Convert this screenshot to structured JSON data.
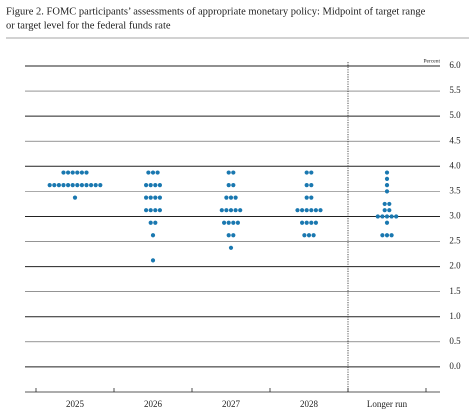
{
  "chart_data": {
    "type": "dot",
    "title": [
      "Figure 2. FOMC participants’ assessments of appropriate monetary policy: Midpoint of target range",
      "or target level for the federal funds rate"
    ],
    "y_axis_label": "Percent",
    "categories": [
      "2025",
      "2026",
      "2027",
      "2028",
      "Longer run"
    ],
    "values": [
      [
        3.875,
        3.875,
        3.875,
        3.875,
        3.875,
        3.875,
        3.625,
        3.625,
        3.625,
        3.625,
        3.625,
        3.625,
        3.625,
        3.625,
        3.625,
        3.625,
        3.625,
        3.625,
        3.375
      ],
      [
        3.875,
        3.875,
        3.875,
        3.625,
        3.625,
        3.625,
        3.625,
        3.375,
        3.375,
        3.375,
        3.375,
        3.125,
        3.125,
        3.125,
        3.125,
        2.875,
        2.875,
        2.625,
        2.125
      ],
      [
        3.875,
        3.875,
        3.625,
        3.625,
        3.375,
        3.375,
        3.375,
        3.125,
        3.125,
        3.125,
        3.125,
        3.125,
        2.875,
        2.875,
        2.875,
        2.875,
        2.625,
        2.625,
        2.375
      ],
      [
        3.875,
        3.875,
        3.625,
        3.625,
        3.375,
        3.375,
        3.125,
        3.125,
        3.125,
        3.125,
        3.125,
        3.125,
        2.875,
        2.875,
        2.875,
        2.875,
        2.625,
        2.625,
        2.625
      ],
      [
        3.875,
        3.75,
        3.625,
        3.5,
        3.25,
        3.25,
        3.125,
        3.125,
        3.0,
        3.0,
        3.0,
        3.0,
        3.0,
        2.875,
        2.625,
        2.625,
        2.625
      ]
    ],
    "color": "#1a78b0",
    "ylim": [
      -0.5,
      6.0
    ],
    "yticks": [
      {
        "value": 0,
        "label": "0.0"
      },
      0.5,
      {
        "value": 1,
        "label": "1.0"
      },
      1.5,
      {
        "value": 2,
        "label": "2.0"
      },
      2.5,
      {
        "value": 3,
        "label": "3.0"
      },
      3.5,
      {
        "value": 4,
        "label": "4.0"
      },
      4.5,
      {
        "value": 5,
        "label": "5.0"
      },
      5.5,
      {
        "value": 6,
        "label": "6.0"
      }
    ],
    "grid": true
  }
}
